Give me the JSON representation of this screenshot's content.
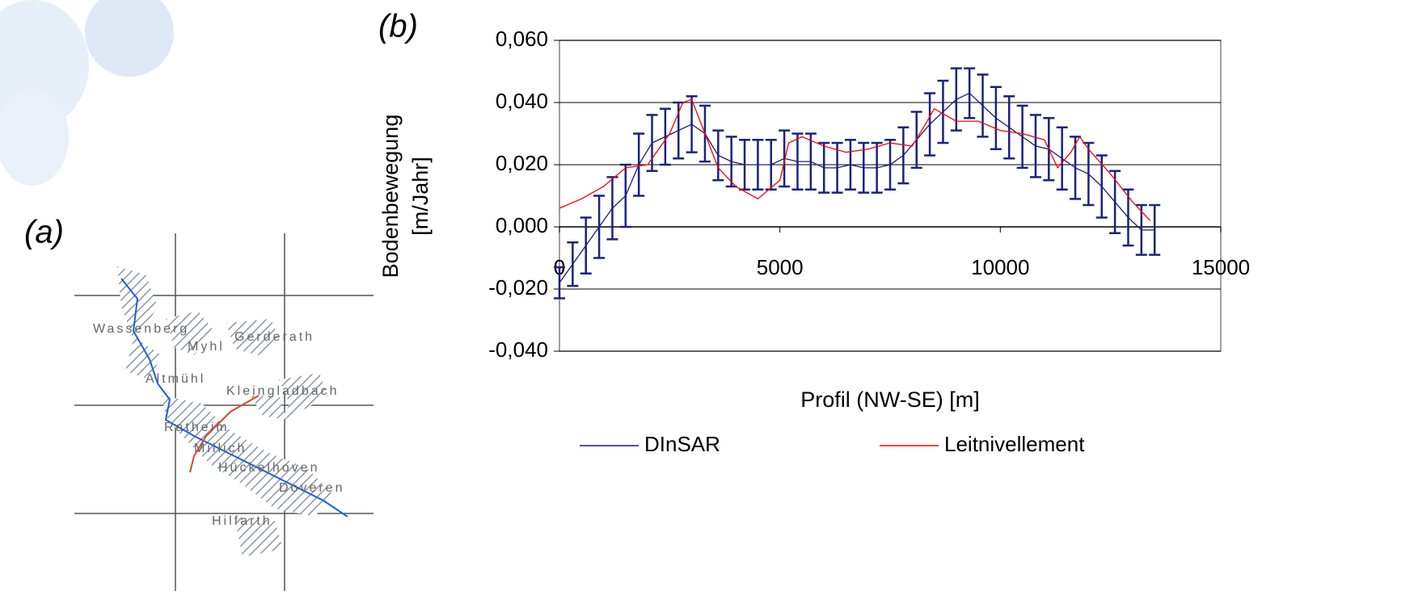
{
  "map": {
    "label": "(a)",
    "places": [
      "Wassenberg",
      "Myhl",
      "Gerderath",
      "Altmühl",
      "Kleingladbach",
      "Ratheim",
      "Millich",
      "Hückelhoven",
      "Doveren",
      "Hilfarth"
    ]
  },
  "chart_data": {
    "type": "line",
    "panel_label": "(b)",
    "xlabel": "Profil (NW-SE) [m]",
    "ylabel": [
      "Bodenbewegung",
      "[m/Jahr]"
    ],
    "xlim": [
      0,
      15000
    ],
    "ylim": [
      -0.04,
      0.06
    ],
    "xticks": [
      0,
      5000,
      10000,
      15000
    ],
    "yticks": [
      {
        "value": -0.04,
        "label": "-0,040"
      },
      {
        "value": -0.02,
        "label": "-0,020"
      },
      {
        "value": 0,
        "label": "0,000"
      },
      {
        "value": 0.02,
        "label": "0,020"
      },
      {
        "value": 0.04,
        "label": "0,040"
      },
      {
        "value": 0.06,
        "label": "0,060"
      }
    ],
    "grid": true,
    "series": [
      {
        "name": "DInSAR",
        "color": "#1c1c7a",
        "error_color": "#1a237e",
        "x": [
          0,
          300,
          600,
          900,
          1200,
          1500,
          1800,
          2100,
          2400,
          2700,
          3000,
          3300,
          3600,
          3900,
          4200,
          4500,
          4800,
          5100,
          5400,
          5700,
          6000,
          6300,
          6600,
          6900,
          7200,
          7500,
          7800,
          8100,
          8400,
          8700,
          9000,
          9300,
          9600,
          9900,
          10200,
          10500,
          10800,
          11100,
          11400,
          11700,
          12000,
          12300,
          12600,
          12900,
          13200,
          13500
        ],
        "values": [
          -0.018,
          -0.012,
          -0.006,
          0.0,
          0.006,
          0.01,
          0.02,
          0.027,
          0.029,
          0.031,
          0.033,
          0.03,
          0.023,
          0.021,
          0.02,
          0.02,
          0.02,
          0.022,
          0.021,
          0.021,
          0.019,
          0.019,
          0.02,
          0.019,
          0.019,
          0.02,
          0.023,
          0.028,
          0.033,
          0.037,
          0.041,
          0.043,
          0.039,
          0.035,
          0.032,
          0.029,
          0.026,
          0.025,
          0.022,
          0.019,
          0.017,
          0.013,
          0.008,
          0.003,
          -0.001,
          -0.001
        ],
        "errors": [
          0.005,
          0.007,
          0.009,
          0.01,
          0.01,
          0.01,
          0.01,
          0.009,
          0.009,
          0.009,
          0.009,
          0.009,
          0.008,
          0.008,
          0.008,
          0.008,
          0.008,
          0.009,
          0.009,
          0.009,
          0.008,
          0.008,
          0.008,
          0.008,
          0.008,
          0.008,
          0.009,
          0.009,
          0.01,
          0.01,
          0.01,
          0.008,
          0.01,
          0.01,
          0.01,
          0.01,
          0.01,
          0.01,
          0.01,
          0.01,
          0.01,
          0.01,
          0.01,
          0.009,
          0.008,
          0.008
        ]
      },
      {
        "name": "Leitnivellement",
        "color": "#ff0000",
        "x": [
          0,
          500,
          1000,
          1500,
          2000,
          2500,
          2800,
          3000,
          3300,
          3600,
          4000,
          4500,
          5000,
          5200,
          5500,
          6000,
          6500,
          7000,
          7500,
          8000,
          8300,
          8500,
          9000,
          9500,
          10000,
          10500,
          11000,
          11300,
          11600,
          11800,
          12000,
          12500,
          13000,
          13400
        ],
        "values": [
          0.006,
          0.009,
          0.013,
          0.019,
          0.02,
          0.03,
          0.04,
          0.041,
          0.03,
          0.019,
          0.013,
          0.009,
          0.015,
          0.027,
          0.029,
          0.026,
          0.024,
          0.025,
          0.027,
          0.026,
          0.033,
          0.038,
          0.034,
          0.034,
          0.031,
          0.03,
          0.028,
          0.019,
          0.024,
          0.029,
          0.025,
          0.017,
          0.008,
          0.002
        ]
      }
    ]
  }
}
